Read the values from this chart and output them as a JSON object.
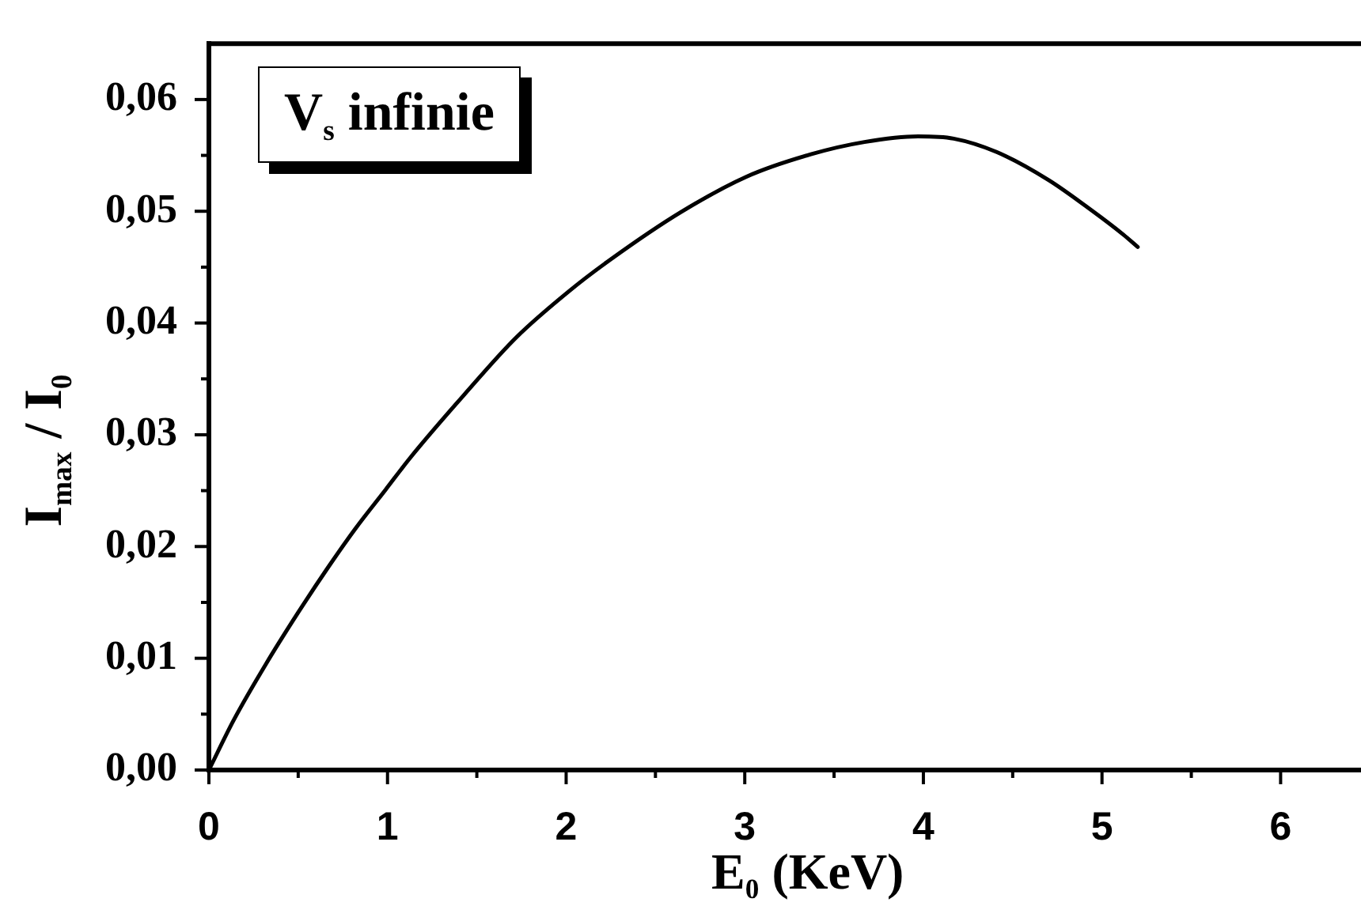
{
  "chart_data": {
    "type": "line",
    "xlabel": "E$_{0}$ (KeV)",
    "ylabel": "I$_{max}$ / I$_{0}$",
    "annotations": [
      "V$_{s}$ infinie"
    ],
    "x": [
      0,
      0.14,
      0.32,
      0.5,
      0.67,
      0.82,
      0.99,
      1.13,
      1.43,
      1.72,
      2.02,
      2.25,
      2.64,
      3.01,
      3.37,
      3.67,
      3.97,
      4.17,
      4.41,
      4.7,
      4.94,
      5.12,
      5.2
    ],
    "series": [
      {
        "color": "#000000",
        "values": [
          0,
          0.0045,
          0.0095,
          0.0141,
          0.0182,
          0.0216,
          0.0251,
          0.028,
          0.0336,
          0.0387,
          0.0429,
          0.0457,
          0.0499,
          0.0531,
          0.0551,
          0.0562,
          0.0567,
          0.0565,
          0.0553,
          0.0528,
          0.0501,
          0.0479,
          0.0468
        ]
      }
    ],
    "xlim": [
      0,
      6.45
    ],
    "ylim": [
      0,
      0.065
    ],
    "xticks": [
      0,
      {
        "value": 0.5,
        "label": null
      },
      1,
      {
        "value": 1.5,
        "label": null
      },
      2,
      {
        "value": 2.5,
        "label": null
      },
      3,
      {
        "value": 3.5,
        "label": null
      },
      4,
      {
        "value": 4.5,
        "label": null
      },
      5,
      {
        "value": 5.5,
        "label": null
      },
      6
    ],
    "yticks": [
      {
        "value": 0,
        "label": "0,00"
      },
      {
        "value": 0.005,
        "label": null
      },
      {
        "value": 0.01,
        "label": "0,01"
      },
      {
        "value": 0.015,
        "label": null
      },
      {
        "value": 0.02,
        "label": "0,02"
      },
      {
        "value": 0.025,
        "label": null
      },
      {
        "value": 0.03,
        "label": "0,03"
      },
      {
        "value": 0.035,
        "label": null
      },
      {
        "value": 0.04,
        "label": "0,04"
      },
      {
        "value": 0.045,
        "label": null
      },
      {
        "value": 0.05,
        "label": "0,05"
      },
      {
        "value": 0.055,
        "label": null
      },
      {
        "value": 0.06,
        "label": "0,06"
      }
    ],
    "marker": "none",
    "line_style": "solid"
  }
}
